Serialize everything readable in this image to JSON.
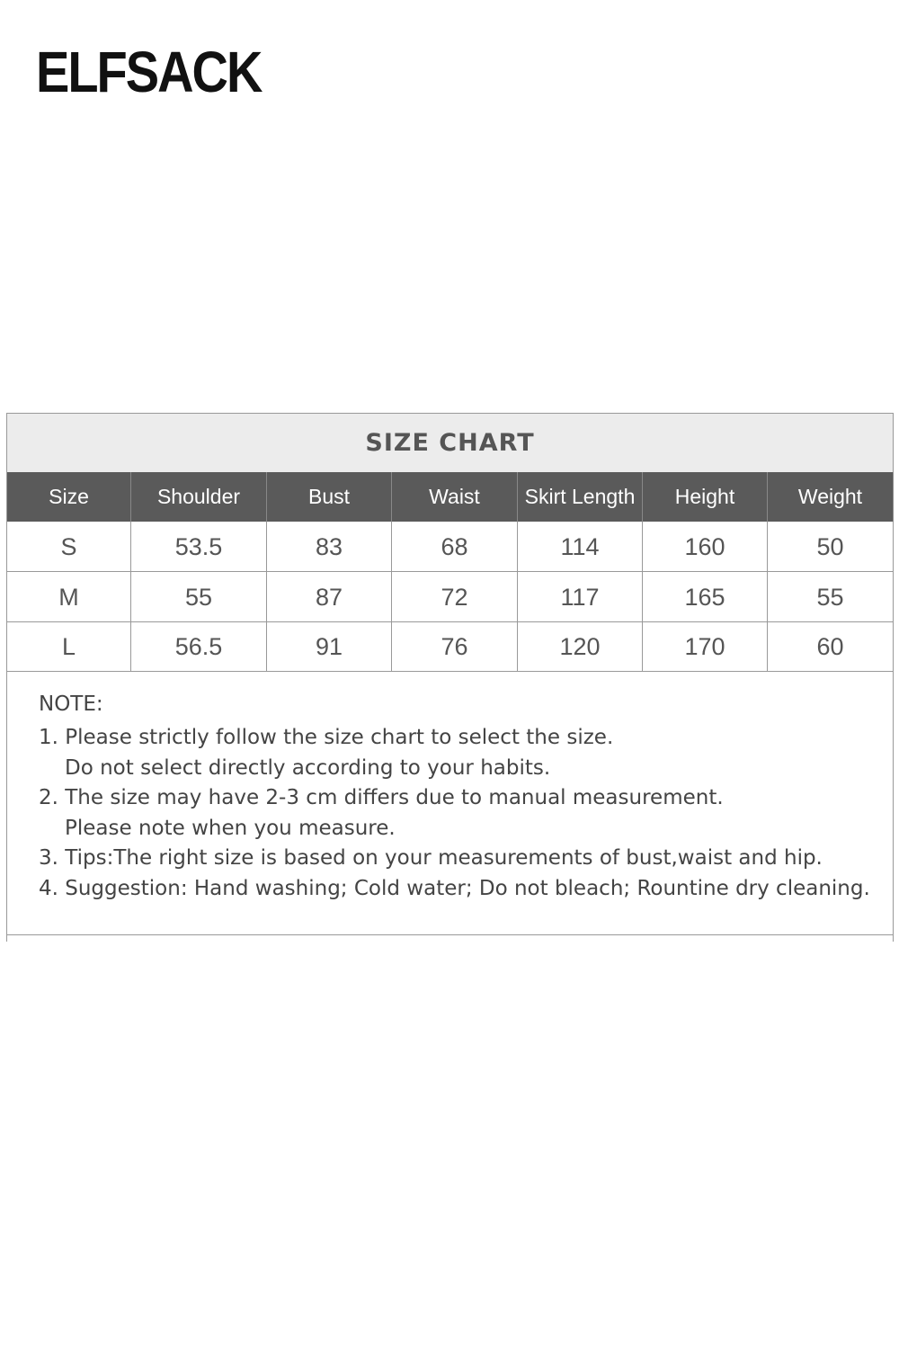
{
  "logo": "ELFSACK",
  "table": {
    "title": "SIZE CHART",
    "headers": [
      "Size",
      "Shoulder",
      "Bust",
      "Waist",
      "Skirt Length",
      "Height",
      "Weight"
    ],
    "rows": [
      [
        "S",
        "53.5",
        "83",
        "68",
        "114",
        "160",
        "50"
      ],
      [
        "M",
        "55",
        "87",
        "72",
        "117",
        "165",
        "55"
      ],
      [
        "L",
        "56.5",
        "91",
        "76",
        "120",
        "170",
        "60"
      ]
    ]
  },
  "note": {
    "title": "NOTE:",
    "items": [
      [
        "1. Please strictly follow the size chart to select the size.",
        "Do not select directly according to your habits."
      ],
      [
        "2. The size may have 2-3 cm differs due to manual measurement.",
        "Please note when you measure."
      ],
      [
        "3. Tips:The right size is based on your measurements of bust,waist and hip."
      ],
      [
        "4. Suggestion: Hand washing; Cold water; Do not bleach; Rountine dry cleaning."
      ]
    ]
  }
}
